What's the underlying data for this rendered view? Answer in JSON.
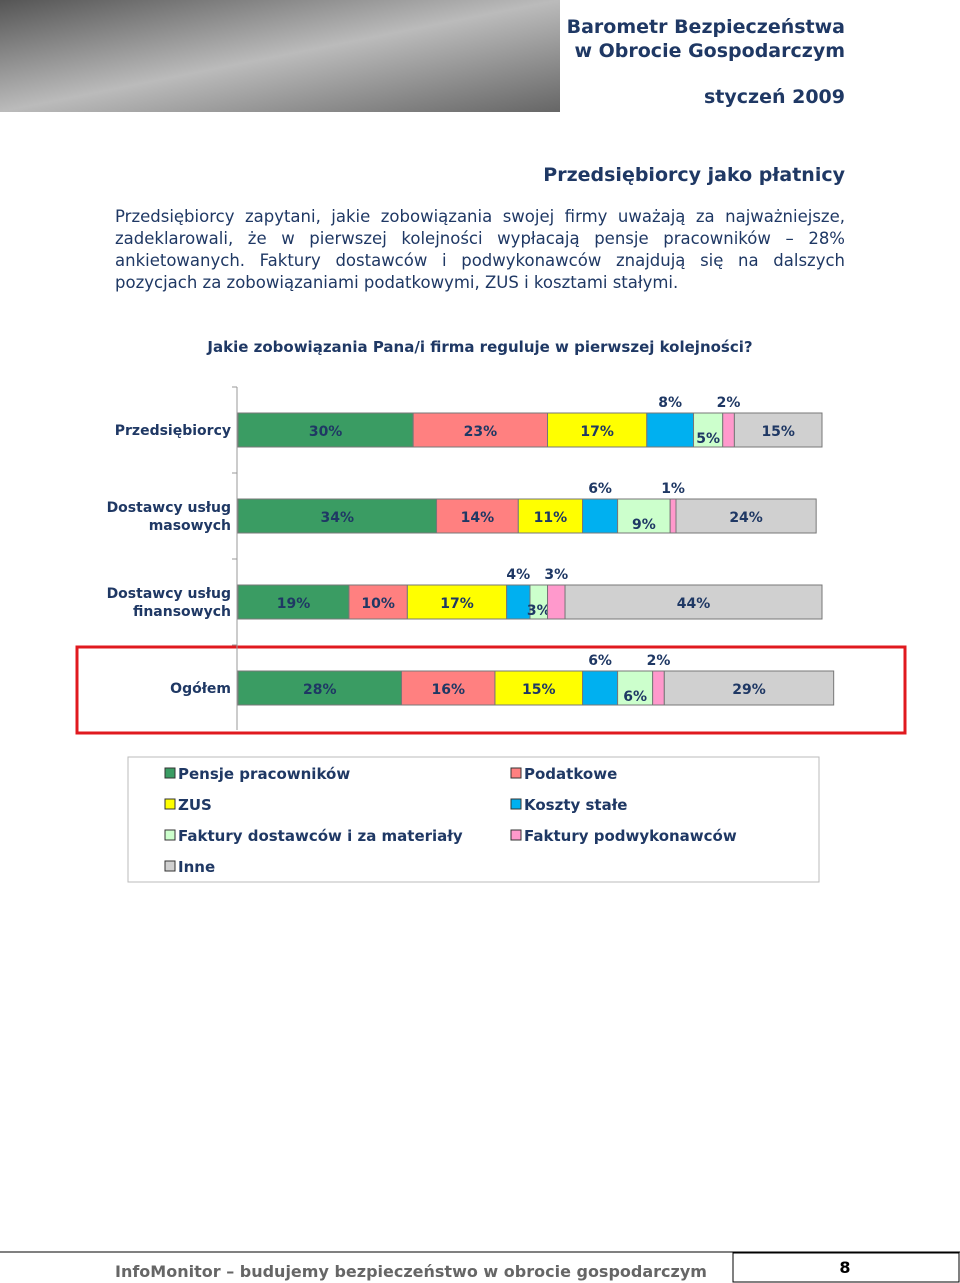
{
  "header": {
    "title_line1": "Barometr Bezpieczeństwa",
    "title_line2": "w Obrocie Gospodarczym",
    "date": "styczeń 2009"
  },
  "section_title": "Przedsiębiorcy jako płatnicy",
  "paragraph": "Przedsiębiorcy zapytani, jakie zobowiązania swojej firmy uważają za najważniejsze, zadeklarowali, że w pierwszej kolejności wypłacają pensje pracowników – 28% ankietowanych. Faktury dostawców i podwykonawców znajdują się na dalszych pozycjach za zobowiązaniami podatkowymi, ZUS i kosztami stałymi.",
  "chart_data": {
    "type": "stacked-bar",
    "title": "Jakie zobowiązania Pana/i firma reguluje w pierwszej kolejności?",
    "categories": [
      "Przedsiębiorcy",
      "Dostawcy usług masowych",
      "Dostawcy usług finansowych",
      "Ogółem"
    ],
    "series": [
      {
        "name": "Pensje pracowników",
        "color": "#3a9c63",
        "values": [
          30,
          34,
          19,
          28
        ],
        "value_labels": [
          "30%",
          "34%",
          "19%",
          "28%"
        ]
      },
      {
        "name": "Podatkowe",
        "color": "#ff8080",
        "values": [
          23,
          14,
          10,
          16
        ],
        "value_labels": [
          "23%",
          "14%",
          "10%",
          "16%"
        ]
      },
      {
        "name": "ZUS",
        "color": "#ffff00",
        "values": [
          17,
          11,
          17,
          15
        ],
        "value_labels": [
          "17%",
          "11%",
          "17%",
          "15%"
        ]
      },
      {
        "name": "Koszty stałe",
        "color": "#00b0f0",
        "values": [
          8,
          6,
          4,
          6
        ],
        "value_labels": [
          "8%",
          "6%",
          "4%",
          "6%"
        ]
      },
      {
        "name": "Faktury dostawców i za materiały",
        "color": "#ccffcc",
        "values": [
          5,
          9,
          3,
          6
        ],
        "value_labels": [
          "5%",
          "9%",
          "3%",
          "6%"
        ]
      },
      {
        "name": "Faktury podwykonawców",
        "color": "#ff99cc",
        "values": [
          2,
          1,
          3,
          2
        ],
        "value_labels": [
          "2%",
          "1%",
          "3%",
          "2%"
        ]
      },
      {
        "name": "Inne",
        "color": "#d0d0d0",
        "values": [
          15,
          24,
          44,
          29
        ],
        "value_labels": [
          "15%",
          "24%",
          "44%",
          "29%"
        ]
      }
    ]
  },
  "footer": {
    "text": "InfoMonitor – budujemy bezpieczeństwo w obrocie gospodarczym",
    "page": 8
  }
}
